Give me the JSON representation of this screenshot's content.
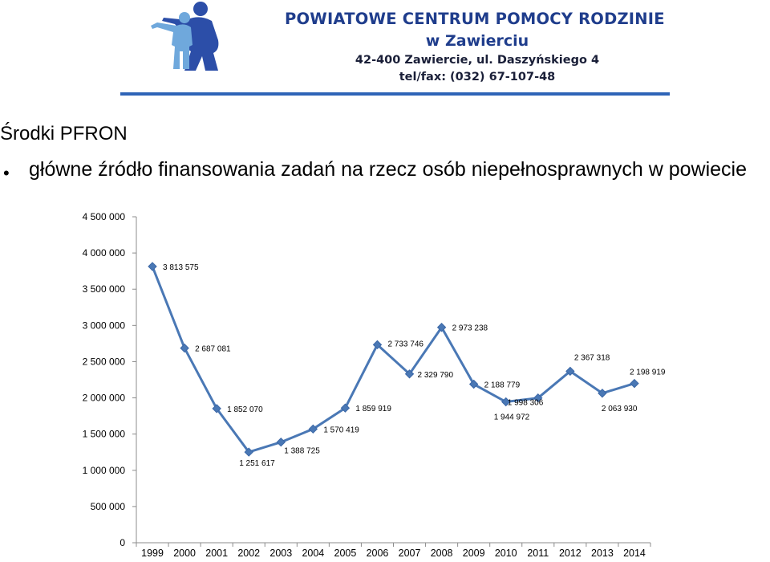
{
  "header": {
    "org_name_line1": "POWIATOWE CENTRUM POMOCY RODZINIE",
    "org_name_line2": "w Zawierciu",
    "address": "42-400 Zawiercie, ul. Daszyńskiego 4",
    "phone": "tel/fax: (032)  67-107-48",
    "logo_icon": "adult-and-child-silhouette-icon",
    "brand_color": "#1f3d8c",
    "rule_color": "#2e64b7"
  },
  "slide": {
    "title": "Środki PFRON",
    "bullet": "główne źródło finansowania zadań na rzecz osób niepełnosprawnych w powiecie"
  },
  "chart_data": {
    "type": "line",
    "categories": [
      "1999",
      "2000",
      "2001",
      "2002",
      "2003",
      "2004",
      "2005",
      "2006",
      "2007",
      "2008",
      "2009",
      "2010",
      "2011",
      "2012",
      "2013",
      "2014"
    ],
    "values": [
      3813575,
      2687081,
      1852070,
      1251617,
      1388725,
      1570419,
      1859919,
      2733746,
      2329790,
      2973238,
      2188779,
      1944972,
      1998306,
      2367318,
      2063930,
      2198919
    ],
    "data_labels": [
      "3 813 575",
      "2 687 081",
      "1 852 070",
      "1 251 617",
      "1 388 725",
      "1 570 419",
      "1 859 919",
      "2 733 746",
      "2 329 790",
      "2 973 238",
      "2 188 779",
      "1 944 972",
      "1 998 306",
      "2 367 318",
      "2 063 930",
      "2 198 919"
    ],
    "yticks": [
      0,
      500000,
      1000000,
      1500000,
      2000000,
      2500000,
      3000000,
      3500000,
      4000000,
      4500000
    ],
    "ytick_labels": [
      "0",
      "500 000",
      "1 000 000",
      "1 500 000",
      "2 000 000",
      "2 500 000",
      "3 000 000",
      "3 500 000",
      "4 000 000",
      "4 500 000"
    ],
    "ylim": [
      0,
      4500000
    ],
    "grid": false,
    "legend": "none",
    "line_color": "#4a78b5",
    "marker": "diamond"
  }
}
